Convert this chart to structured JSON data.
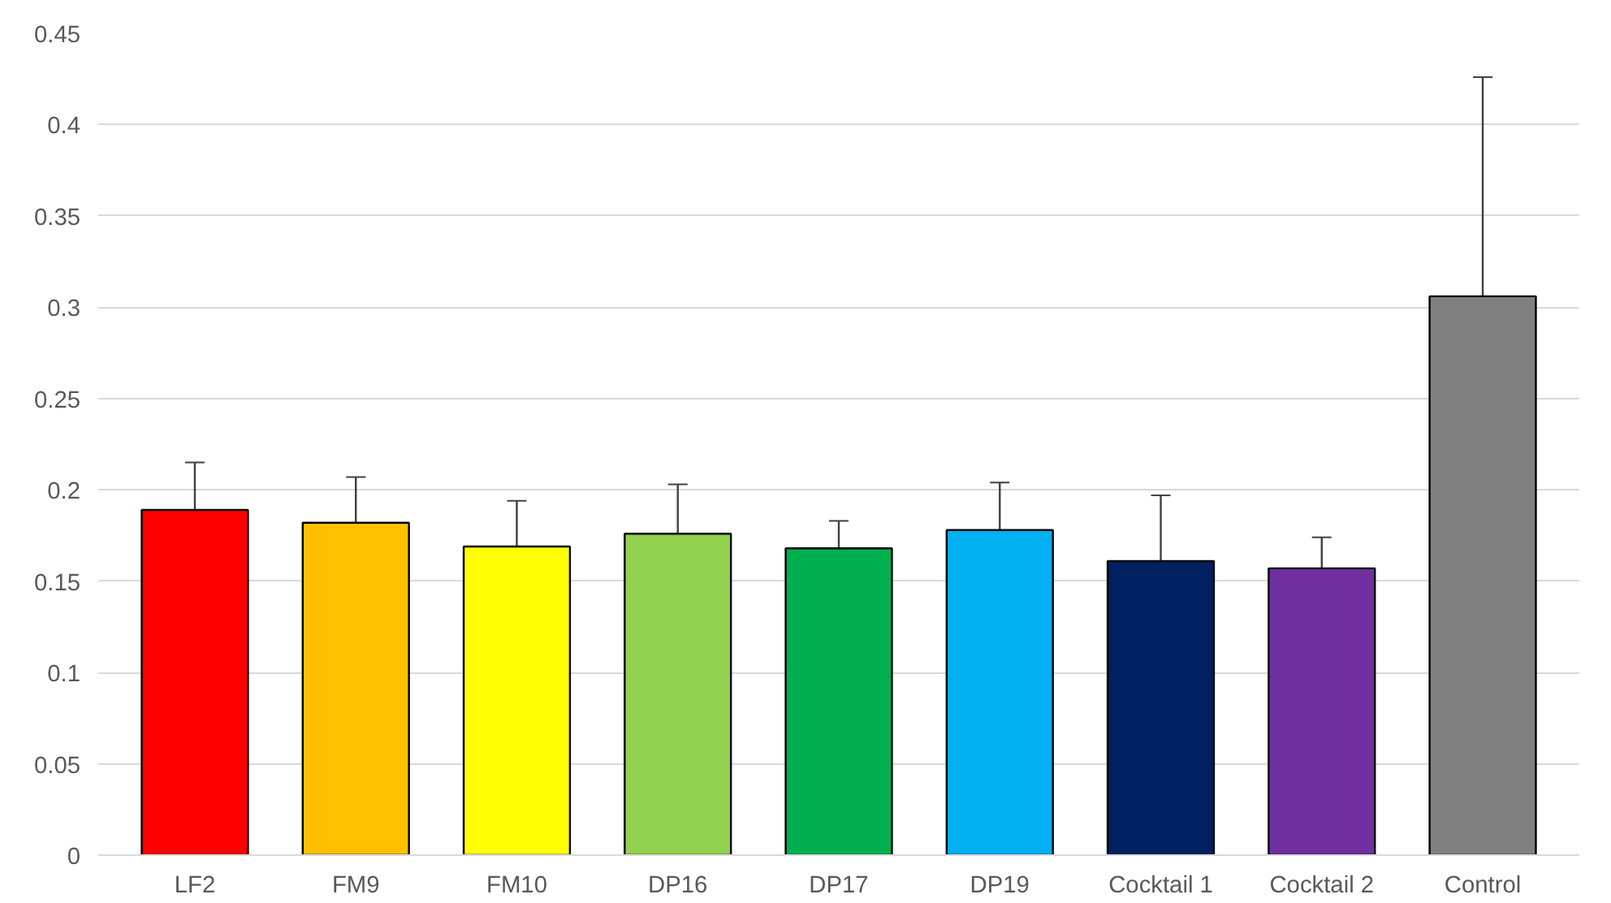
{
  "chart_data": {
    "type": "bar",
    "categories": [
      "LF2",
      "FM9",
      "FM10",
      "DP16",
      "DP17",
      "DP19",
      "Cocktail 1",
      "Cocktail 2",
      "Control"
    ],
    "values": [
      0.189,
      0.182,
      0.169,
      0.176,
      0.168,
      0.178,
      0.161,
      0.157,
      0.306
    ],
    "errors": [
      0.026,
      0.025,
      0.025,
      0.027,
      0.015,
      0.026,
      0.036,
      0.017,
      0.12
    ],
    "colors": [
      "#ff0000",
      "#ffc000",
      "#ffff00",
      "#92d050",
      "#00b050",
      "#00b0f0",
      "#002060",
      "#7030a0",
      "#808080"
    ],
    "ylim": [
      0,
      0.45
    ],
    "yticks": [
      0,
      0.05,
      0.1,
      0.15,
      0.2,
      0.25,
      0.3,
      0.35,
      0.4,
      0.45
    ],
    "grid": "y"
  }
}
